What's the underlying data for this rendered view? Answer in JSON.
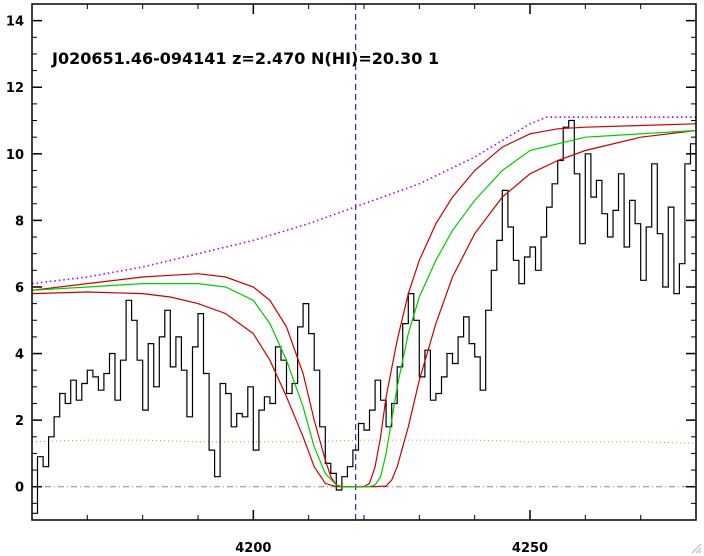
{
  "chart_data": {
    "type": "line",
    "title": "J020651.46-094141 z=2.470 N(HI)=20.30 1",
    "xlabel": "",
    "ylabel": "",
    "xlim": [
      4160,
      4280
    ],
    "ylim": [
      -1,
      14.5
    ],
    "xticks": [
      4200,
      4250
    ],
    "xtick_labels": [
      "4200",
      "4250"
    ],
    "yticks": [
      0,
      2,
      4,
      6,
      8,
      10,
      12,
      14
    ],
    "ytick_labels": [
      "0",
      "2",
      "4",
      "6",
      "8",
      "10",
      "12",
      "14"
    ],
    "grid": false,
    "reference_lines": {
      "line_center_x": 4218.5,
      "zero_level_y": 0
    },
    "colors": {
      "flux": "#000000",
      "model": "#00cc00",
      "model_bounds": "#cc0000",
      "continuum": "#aa00ff",
      "error": "#ff7f00",
      "center_line": "#0000cc",
      "zero_line": "#888888"
    },
    "series": [
      {
        "style": "steps",
        "x": [
          4160,
          4161,
          4162,
          4163,
          4164,
          4165,
          4166,
          4167,
          4168,
          4169,
          4170,
          4171,
          4172,
          4173,
          4174,
          4175,
          4176,
          4177,
          4178,
          4179,
          4180,
          4181,
          4182,
          4183,
          4184,
          4185,
          4186,
          4187,
          4188,
          4189,
          4190,
          4191,
          4192,
          4193,
          4194,
          4195,
          4196,
          4197,
          4198,
          4199,
          4200,
          4201,
          4202,
          4203,
          4204,
          4205,
          4206,
          4207,
          4208,
          4209,
          4210,
          4211,
          4212,
          4213,
          4214,
          4215,
          4216,
          4217,
          4218,
          4219,
          4220,
          4221,
          4222,
          4223,
          4224,
          4225,
          4226,
          4227,
          4228,
          4229,
          4230,
          4231,
          4232,
          4233,
          4234,
          4235,
          4236,
          4237,
          4238,
          4239,
          4240,
          4241,
          4242,
          4243,
          4244,
          4245,
          4246,
          4247,
          4248,
          4249,
          4250,
          4251,
          4252,
          4253,
          4254,
          4255,
          4256,
          4257,
          4258,
          4259,
          4260,
          4261,
          4262,
          4263,
          4264,
          4265,
          4266,
          4267,
          4268,
          4269,
          4270,
          4271,
          4272,
          4273,
          4274,
          4275,
          4276,
          4277,
          4278,
          4279
        ],
        "values": [
          -0.8,
          0.9,
          0.6,
          1.5,
          2.1,
          2.8,
          2.5,
          3.2,
          2.6,
          3.1,
          3.5,
          3.3,
          2.9,
          3.4,
          4.0,
          2.6,
          3.8,
          5.6,
          5.0,
          3.8,
          2.3,
          4.3,
          3.0,
          4.5,
          5.3,
          3.6,
          4.5,
          3.5,
          2.1,
          4.2,
          5.2,
          3.4,
          1.1,
          0.3,
          3.1,
          2.8,
          1.8,
          2.2,
          2.1,
          3.0,
          1.1,
          2.3,
          2.7,
          2.5,
          4.2,
          3.8,
          2.8,
          3.1,
          4.8,
          5.5,
          4.6,
          3.5,
          1.8,
          0.7,
          0.4,
          -0.1,
          0.3,
          0.6,
          1.1,
          1.9,
          1.7,
          2.3,
          3.2,
          2.6,
          1.8,
          2.5,
          3.6,
          4.9,
          5.8,
          5.0,
          3.3,
          4.1,
          2.6,
          2.8,
          3.3,
          4.0,
          3.7,
          4.5,
          5.1,
          4.3,
          3.9,
          2.9,
          5.3,
          6.5,
          7.4,
          8.9,
          7.8,
          6.8,
          6.1,
          6.9,
          7.2,
          6.5,
          7.5,
          8.4,
          9.1,
          9.8,
          10.8,
          11.0,
          9.4,
          7.3,
          10.0,
          8.7,
          9.2,
          8.2,
          7.5,
          8.3,
          9.4,
          7.2,
          8.6,
          7.9,
          6.2,
          7.8,
          9.7,
          7.6,
          6.0,
          8.4,
          5.8,
          6.7,
          9.7,
          10.3
        ]
      },
      {
        "x": [
          4160,
          4170,
          4180,
          4185,
          4190,
          4195,
          4200,
          4203,
          4206,
          4209,
          4211,
          4213,
          4215,
          4216,
          4217,
          4218,
          4219,
          4220,
          4221,
          4222,
          4223,
          4224,
          4225,
          4226,
          4228,
          4230,
          4233,
          4236,
          4240,
          4245,
          4250,
          4255,
          4260,
          4270,
          4280
        ],
        "values": [
          5.9,
          6.0,
          6.1,
          6.1,
          6.1,
          6.0,
          5.6,
          4.9,
          3.8,
          2.4,
          1.2,
          0.4,
          0.05,
          0.0,
          0.0,
          0.0,
          0.0,
          0.0,
          0.0,
          0.05,
          0.3,
          1.0,
          2.0,
          3.0,
          4.6,
          5.7,
          6.8,
          7.7,
          8.6,
          9.5,
          10.1,
          10.3,
          10.5,
          10.6,
          10.7
        ]
      },
      {
        "x": [
          4160,
          4170,
          4180,
          4185,
          4190,
          4195,
          4200,
          4203,
          4206,
          4209,
          4211,
          4213,
          4214,
          4215,
          4216,
          4218,
          4220,
          4221,
          4222,
          4223,
          4224,
          4226,
          4228,
          4230,
          4233,
          4236,
          4240,
          4245,
          4250,
          4255,
          4260,
          4270,
          4280
        ],
        "values": [
          5.9,
          6.1,
          6.3,
          6.35,
          6.4,
          6.3,
          6.0,
          5.6,
          4.8,
          3.4,
          2.0,
          0.8,
          0.3,
          0.05,
          0.0,
          0.0,
          0.0,
          0.1,
          0.6,
          1.5,
          2.7,
          4.4,
          5.8,
          6.8,
          7.9,
          8.7,
          9.5,
          10.2,
          10.6,
          10.75,
          10.8,
          10.85,
          10.9
        ]
      },
      {
        "x": [
          4160,
          4170,
          4180,
          4185,
          4190,
          4195,
          4200,
          4203,
          4206,
          4209,
          4211,
          4213,
          4215,
          4217,
          4218,
          4220,
          4222,
          4224,
          4225,
          4226,
          4228,
          4230,
          4233,
          4236,
          4240,
          4245,
          4250,
          4255,
          4260,
          4270,
          4280
        ],
        "values": [
          5.8,
          5.85,
          5.8,
          5.7,
          5.5,
          5.2,
          4.6,
          3.8,
          2.7,
          1.5,
          0.6,
          0.1,
          0.0,
          0.0,
          0.0,
          0.0,
          0.0,
          0.02,
          0.2,
          0.6,
          1.8,
          3.2,
          4.9,
          6.3,
          7.6,
          8.7,
          9.4,
          9.8,
          10.1,
          10.5,
          10.7
        ]
      },
      {
        "style": "dotted",
        "x": [
          4160,
          4170,
          4180,
          4190,
          4200,
          4210,
          4215,
          4220,
          4225,
          4230,
          4240,
          4250,
          4253,
          4260,
          4270,
          4280
        ],
        "values": [
          6.1,
          6.3,
          6.6,
          7.0,
          7.4,
          7.9,
          8.2,
          8.5,
          8.8,
          9.1,
          9.9,
          10.9,
          11.1,
          11.1,
          11.1,
          11.1
        ]
      },
      {
        "style": "dotted",
        "x": [
          4160,
          4170,
          4180,
          4190,
          4200,
          4210,
          4220,
          4230,
          4240,
          4250,
          4260,
          4270,
          4280
        ],
        "values": [
          1.35,
          1.4,
          1.4,
          1.35,
          1.35,
          1.35,
          1.4,
          1.4,
          1.4,
          1.35,
          1.35,
          1.35,
          1.3
        ]
      }
    ]
  }
}
